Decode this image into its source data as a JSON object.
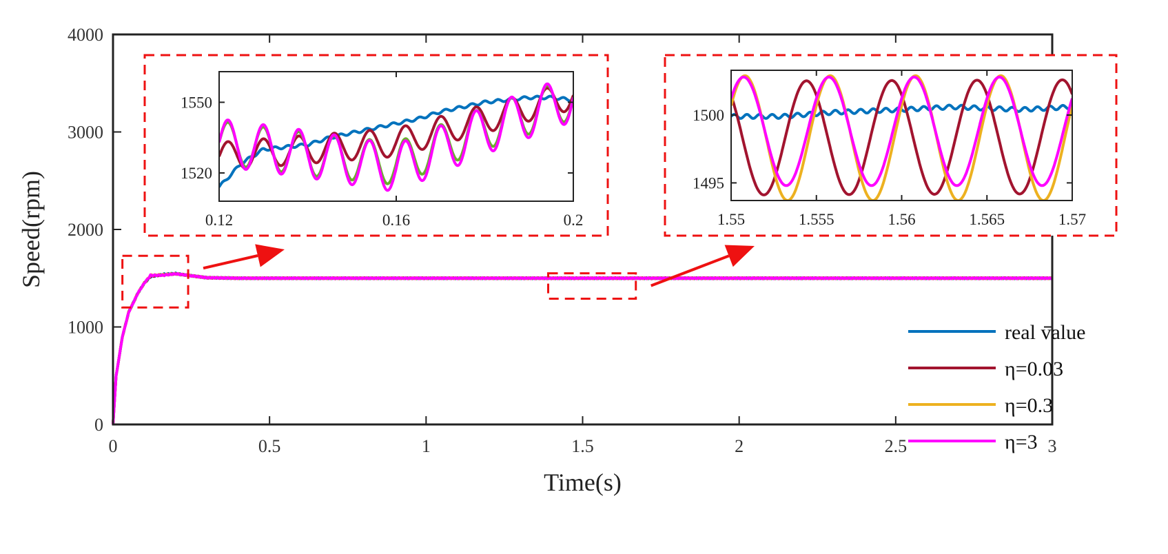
{
  "chart_data": {
    "type": "line",
    "title": "",
    "xlabel": "Time(s)",
    "ylabel": "Speed(rpm)",
    "xlim": [
      0,
      3
    ],
    "ylim": [
      0,
      4000
    ],
    "x_ticks": [
      "0",
      "0.5",
      "1",
      "1.5",
      "2",
      "2.5",
      "3"
    ],
    "y_ticks": [
      "0",
      "1000",
      "2000",
      "3000",
      "4000"
    ],
    "legend_position": "bottom-right",
    "series": [
      {
        "name": "real value",
        "color": "#0072BD",
        "points": [
          [
            0,
            0
          ],
          [
            0.01,
            500
          ],
          [
            0.03,
            900
          ],
          [
            0.05,
            1150
          ],
          [
            0.08,
            1350
          ],
          [
            0.1,
            1450
          ],
          [
            0.12,
            1515
          ],
          [
            0.16,
            1540
          ],
          [
            0.2,
            1548
          ],
          [
            0.25,
            1525
          ],
          [
            0.3,
            1505
          ],
          [
            0.4,
            1500
          ],
          [
            3,
            1500
          ]
        ]
      },
      {
        "name": "η=0.03",
        "color": "#A2142F",
        "points": [
          [
            0,
            0
          ],
          [
            0.01,
            500
          ],
          [
            0.03,
            900
          ],
          [
            0.05,
            1150
          ],
          [
            0.08,
            1350
          ],
          [
            0.1,
            1450
          ],
          [
            0.12,
            1520
          ],
          [
            0.16,
            1535
          ],
          [
            0.2,
            1545
          ],
          [
            0.25,
            1525
          ],
          [
            0.3,
            1505
          ],
          [
            0.4,
            1500
          ],
          [
            3,
            1500
          ]
        ]
      },
      {
        "name": "η=0.3",
        "color": "#EDB120",
        "points": [
          [
            0,
            0
          ],
          [
            0.01,
            500
          ],
          [
            0.03,
            900
          ],
          [
            0.05,
            1150
          ],
          [
            0.08,
            1350
          ],
          [
            0.1,
            1450
          ],
          [
            0.12,
            1530
          ],
          [
            0.16,
            1535
          ],
          [
            0.2,
            1545
          ],
          [
            0.25,
            1525
          ],
          [
            0.3,
            1505
          ],
          [
            0.4,
            1500
          ],
          [
            3,
            1500
          ]
        ]
      },
      {
        "name": "η=3",
        "color": "#FF00FF",
        "points": [
          [
            0,
            0
          ],
          [
            0.01,
            500
          ],
          [
            0.03,
            900
          ],
          [
            0.05,
            1150
          ],
          [
            0.08,
            1350
          ],
          [
            0.1,
            1450
          ],
          [
            0.12,
            1530
          ],
          [
            0.16,
            1530
          ],
          [
            0.2,
            1545
          ],
          [
            0.25,
            1525
          ],
          [
            0.3,
            1505
          ],
          [
            0.4,
            1500
          ],
          [
            3,
            1500
          ]
        ]
      }
    ],
    "zoom_regions": [
      {
        "name": "start",
        "xlim": [
          0.03,
          0.24
        ],
        "ylim": [
          1200,
          1730
        ]
      },
      {
        "name": "steady",
        "xlim": [
          1.39,
          1.67
        ],
        "ylim": [
          1290,
          1550
        ]
      }
    ],
    "insets": [
      {
        "name": "inset-left",
        "xlim": [
          0.12,
          0.2
        ],
        "ylim": [
          1508,
          1563
        ],
        "x_ticks": [
          "0.12",
          "0.16",
          "0.2"
        ],
        "y_ticks": [
          "1520",
          "1550"
        ],
        "series": [
          {
            "name": "real value",
            "color": "#0072BD",
            "kind": "trend",
            "base": [
              [
                0.12,
                1514
              ],
              [
                0.125,
                1524
              ],
              [
                0.13,
                1530
              ],
              [
                0.135,
                1531
              ],
              [
                0.14,
                1532
              ],
              [
                0.145,
                1535
              ],
              [
                0.15,
                1537
              ],
              [
                0.155,
                1539
              ],
              [
                0.16,
                1541
              ],
              [
                0.165,
                1543
              ],
              [
                0.17,
                1546
              ],
              [
                0.175,
                1548
              ],
              [
                0.18,
                1550
              ],
              [
                0.185,
                1551
              ],
              [
                0.19,
                1552
              ],
              [
                0.195,
                1552
              ],
              [
                0.2,
                1551
              ]
            ],
            "amp": 0.6,
            "freq": 600
          },
          {
            "name": "η=0.03",
            "color": "#A2142F",
            "kind": "osc",
            "base": [
              [
                0.12,
                1527
              ],
              [
                0.14,
                1530
              ],
              [
                0.16,
                1533
              ],
              [
                0.18,
                1543
              ],
              [
                0.2,
                1553
              ]
            ],
            "amp": 6,
            "freq": 200
          },
          {
            "name": "η=0.3",
            "color": "#6AAF2E",
            "kind": "osc",
            "base": [
              [
                0.12,
                1533
              ],
              [
                0.14,
                1528
              ],
              [
                0.16,
                1524
              ],
              [
                0.18,
                1539
              ],
              [
                0.2,
                1552
              ]
            ],
            "amp": 9,
            "freq": 200
          },
          {
            "name": "η=3",
            "color": "#FF00FF",
            "kind": "osc",
            "base": [
              [
                0.12,
                1533
              ],
              [
                0.14,
                1528
              ],
              [
                0.16,
                1522
              ],
              [
                0.18,
                1538
              ],
              [
                0.2,
                1552
              ]
            ],
            "amp": 10,
            "freq": 200
          }
        ]
      },
      {
        "name": "inset-right",
        "xlim": [
          1.55,
          1.57
        ],
        "ylim": [
          1493.7,
          1503.3
        ],
        "x_ticks": [
          "1.55",
          "1.555",
          "1.56",
          "1.565",
          "1.57"
        ],
        "y_ticks": [
          "1495",
          "1500"
        ],
        "series": [
          {
            "name": "real value",
            "color": "#0072BD",
            "kind": "trend",
            "base": [
              [
                1.55,
                1499.9
              ],
              [
                1.553,
                1499.9
              ],
              [
                1.556,
                1500.2
              ],
              [
                1.56,
                1500.4
              ],
              [
                1.563,
                1500.6
              ],
              [
                1.567,
                1500.4
              ],
              [
                1.57,
                1500.6
              ]
            ],
            "amp": 0.15,
            "freq": 400
          },
          {
            "name": "η=0.03",
            "color": "#A2142F",
            "kind": "osc",
            "base": [
              [
                1.55,
                1498.3
              ],
              [
                1.57,
                1498.4
              ]
            ],
            "amp": 4.2,
            "freq": 200,
            "phase": 2.3
          },
          {
            "name": "η=0.3",
            "color": "#EDB120",
            "kind": "osc",
            "base": [
              [
                1.55,
                1498.3
              ],
              [
                1.57,
                1498.3
              ]
            ],
            "amp": 4.6,
            "freq": 200,
            "phase": 0.55
          },
          {
            "name": "η=3",
            "color": "#FF00FF",
            "kind": "osc",
            "base": [
              [
                1.55,
                1498.8
              ],
              [
                1.57,
                1498.8
              ]
            ],
            "amp": 4.0,
            "freq": 200,
            "phase": 0.65
          }
        ]
      }
    ]
  },
  "style": {
    "zoom_color": "#EE1111",
    "frame_color": "#222222"
  }
}
